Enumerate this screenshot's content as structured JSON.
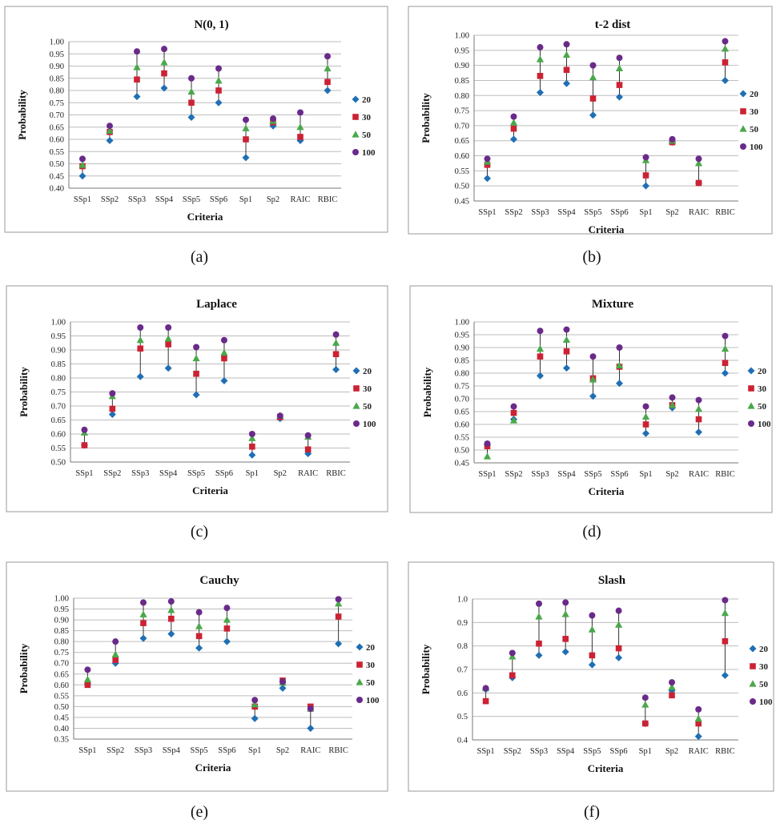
{
  "legend_labels": [
    "20",
    "30",
    "50",
    "100"
  ],
  "series_colors": [
    "#1f6fb5",
    "#cc2233",
    "#4aa84a",
    "#6a2a8a"
  ],
  "panels": [
    {
      "caption": "(a)",
      "title": "N(0, 1)",
      "xlabel": "Criteria",
      "ylabel": "Probability",
      "categories": [
        "SSp1",
        "SSp2",
        "SSp3",
        "SSp4",
        "SSp5",
        "SSp6",
        "Sp1",
        "Sp2",
        "RAIC",
        "RBIC"
      ],
      "yticks": [
        "0.40",
        "0.45",
        "0.50",
        "0.55",
        "0.60",
        "0.65",
        "0.70",
        "0.75",
        "0.80",
        "0.85",
        "0.90",
        "0.95",
        "1.00"
      ],
      "chart_data": {
        "type": "scatter",
        "ylim": [
          0.4,
          1.0
        ],
        "categories": [
          "SSp1",
          "SSp2",
          "SSp3",
          "SSp4",
          "SSp5",
          "SSp6",
          "Sp1",
          "Sp2",
          "RAIC",
          "RBIC"
        ],
        "series": [
          {
            "name": "20",
            "values": [
              0.45,
              0.595,
              0.775,
              0.81,
              0.69,
              0.75,
              0.525,
              0.655,
              0.595,
              0.8
            ]
          },
          {
            "name": "30",
            "values": [
              0.49,
              0.63,
              0.845,
              0.87,
              0.75,
              0.8,
              0.6,
              0.67,
              0.61,
              0.835
            ]
          },
          {
            "name": "50",
            "values": [
              0.495,
              0.635,
              0.895,
              0.915,
              0.795,
              0.84,
              0.645,
              0.675,
              0.65,
              0.89
            ]
          },
          {
            "name": "100",
            "values": [
              0.52,
              0.655,
              0.96,
              0.97,
              0.85,
              0.89,
              0.68,
              0.685,
              0.71,
              0.94
            ]
          }
        ],
        "legend": "right"
      }
    },
    {
      "caption": "(b)",
      "title": "t-2 dist",
      "xlabel": "Criteria",
      "ylabel": "Probability",
      "categories": [
        "SSp1",
        "SSp2",
        "SSp3",
        "SSp4",
        "SSp5",
        "SSp6",
        "Sp1",
        "Sp2",
        "RAIC",
        "RBIC"
      ],
      "yticks": [
        "0.45",
        "0.50",
        "0.55",
        "0.60",
        "0.65",
        "0.70",
        "0.75",
        "0.80",
        "0.85",
        "0.90",
        "0.95",
        "1.00"
      ],
      "chart_data": {
        "type": "scatter",
        "ylim": [
          0.45,
          1.0
        ],
        "categories": [
          "SSp1",
          "SSp2",
          "SSp3",
          "SSp4",
          "SSp5",
          "SSp6",
          "Sp1",
          "Sp2",
          "RAIC",
          "RBIC"
        ],
        "series": [
          {
            "name": "20",
            "values": [
              0.525,
              0.655,
              0.81,
              0.84,
              0.735,
              0.795,
              0.5,
              0.645,
              0.51,
              0.85
            ]
          },
          {
            "name": "30",
            "values": [
              0.57,
              0.69,
              0.865,
              0.885,
              0.79,
              0.835,
              0.535,
              0.645,
              0.51,
              0.91
            ]
          },
          {
            "name": "50",
            "values": [
              0.58,
              0.71,
              0.92,
              0.935,
              0.86,
              0.89,
              0.585,
              0.65,
              0.575,
              0.955
            ]
          },
          {
            "name": "100",
            "values": [
              0.59,
              0.73,
              0.96,
              0.97,
              0.9,
              0.925,
              0.595,
              0.655,
              0.59,
              0.98
            ]
          }
        ],
        "legend": "right"
      }
    },
    {
      "caption": "(c)",
      "title": "Laplace",
      "xlabel": "Criteria",
      "ylabel": "Probability",
      "categories": [
        "SSp1",
        "SSp2",
        "SSp3",
        "SSp4",
        "SSp5",
        "SSp6",
        "Sp1",
        "Sp2",
        "RAIC",
        "RBIC"
      ],
      "yticks": [
        "0.50",
        "0.55",
        "0.60",
        "0.65",
        "0.70",
        "0.75",
        "0.80",
        "0.85",
        "0.90",
        "0.95",
        "1.00"
      ],
      "chart_data": {
        "type": "scatter",
        "ylim": [
          0.5,
          1.0
        ],
        "categories": [
          "SSp1",
          "SSp2",
          "SSp3",
          "SSp4",
          "SSp5",
          "SSp6",
          "Sp1",
          "Sp2",
          "RAIC",
          "RBIC"
        ],
        "series": [
          {
            "name": "20",
            "values": [
              0.56,
              0.67,
              0.805,
              0.835,
              0.74,
              0.79,
              0.525,
              0.655,
              0.53,
              0.83
            ]
          },
          {
            "name": "30",
            "values": [
              0.56,
              0.69,
              0.905,
              0.92,
              0.815,
              0.87,
              0.555,
              0.66,
              0.545,
              0.885
            ]
          },
          {
            "name": "50",
            "values": [
              0.605,
              0.735,
              0.935,
              0.94,
              0.87,
              0.89,
              0.585,
              0.665,
              0.59,
              0.925
            ]
          },
          {
            "name": "100",
            "values": [
              0.615,
              0.745,
              0.98,
              0.98,
              0.91,
              0.935,
              0.6,
              0.665,
              0.595,
              0.955
            ]
          }
        ],
        "legend": "right"
      }
    },
    {
      "caption": "(d)",
      "title": "Mixture",
      "xlabel": "Criteria",
      "ylabel": "Probability",
      "categories": [
        "SSp1",
        "SSp2",
        "SSp3",
        "SSp4",
        "SSp5",
        "SSp6",
        "Sp1",
        "Sp2",
        "RAIC",
        "RBIC"
      ],
      "yticks": [
        "0.45",
        "0.50",
        "0.55",
        "0.60",
        "0.65",
        "0.70",
        "0.75",
        "0.80",
        "0.85",
        "0.90",
        "0.95",
        "1.00"
      ],
      "chart_data": {
        "type": "scatter",
        "ylim": [
          0.45,
          1.0
        ],
        "categories": [
          "SSp1",
          "SSp2",
          "SSp3",
          "SSp4",
          "SSp5",
          "SSp6",
          "Sp1",
          "Sp2",
          "RAIC",
          "RBIC"
        ],
        "series": [
          {
            "name": "20",
            "values": [
              0.52,
              0.62,
              0.79,
              0.82,
              0.71,
              0.76,
              0.565,
              0.665,
              0.57,
              0.8
            ]
          },
          {
            "name": "30",
            "values": [
              0.515,
              0.645,
              0.865,
              0.885,
              0.78,
              0.825,
              0.6,
              0.675,
              0.62,
              0.84
            ]
          },
          {
            "name": "50",
            "values": [
              0.475,
              0.615,
              0.895,
              0.93,
              0.775,
              0.83,
              0.63,
              0.675,
              0.66,
              0.895
            ]
          },
          {
            "name": "100",
            "values": [
              0.525,
              0.67,
              0.965,
              0.97,
              0.865,
              0.9,
              0.67,
              0.705,
              0.695,
              0.945
            ]
          }
        ],
        "legend": "right"
      }
    },
    {
      "caption": "(e)",
      "title": "Cauchy",
      "xlabel": "Criteria",
      "ylabel": "Probability",
      "categories": [
        "SSp1",
        "SSp2",
        "SSp3",
        "SSp4",
        "SSp5",
        "SSp6",
        "Sp1",
        "Sp2",
        "RAIC",
        "RBIC"
      ],
      "yticks": [
        "0.35",
        "0.40",
        "0.45",
        "0.50",
        "0.55",
        "0.60",
        "0.65",
        "0.70",
        "0.75",
        "0.80",
        "0.85",
        "0.90",
        "0.95",
        "1.00"
      ],
      "chart_data": {
        "type": "scatter",
        "ylim": [
          0.35,
          1.0
        ],
        "categories": [
          "SSp1",
          "SSp2",
          "SSp3",
          "SSp4",
          "SSp5",
          "SSp6",
          "Sp1",
          "Sp2",
          "RAIC",
          "RBIC"
        ],
        "series": [
          {
            "name": "20",
            "values": [
              0.605,
              0.7,
              0.815,
              0.835,
              0.77,
              0.8,
              0.445,
              0.585,
              0.4,
              0.79
            ]
          },
          {
            "name": "30",
            "values": [
              0.6,
              0.715,
              0.885,
              0.905,
              0.825,
              0.86,
              0.5,
              0.62,
              0.5,
              0.915
            ]
          },
          {
            "name": "50",
            "values": [
              0.625,
              0.74,
              0.925,
              0.945,
              0.87,
              0.9,
              0.51,
              0.61,
              0.49,
              0.975
            ]
          },
          {
            "name": "100",
            "values": [
              0.67,
              0.8,
              0.98,
              0.985,
              0.935,
              0.955,
              0.53,
              0.615,
              0.49,
              0.995
            ]
          }
        ],
        "legend": "right"
      }
    },
    {
      "caption": "(f)",
      "title": "Slash",
      "xlabel": "Criteria",
      "ylabel": "Probability",
      "categories": [
        "SSp1",
        "SSp2",
        "SSp3",
        "SSp4",
        "SSp5",
        "SSp6",
        "Sp1",
        "Sp2",
        "RAIC",
        "RBIC"
      ],
      "yticks": [
        "0.4",
        "0.5",
        "0.6",
        "0.7",
        "0.8",
        "0.9",
        "1.0"
      ],
      "chart_data": {
        "type": "scatter",
        "ylim": [
          0.4,
          1.0
        ],
        "categories": [
          "SSp1",
          "SSp2",
          "SSp3",
          "SSp4",
          "SSp5",
          "SSp6",
          "Sp1",
          "Sp2",
          "RAIC",
          "RBIC"
        ],
        "series": [
          {
            "name": "20",
            "values": [
              0.615,
              0.665,
              0.76,
              0.775,
              0.72,
              0.75,
              0.47,
              0.61,
              0.415,
              0.675
            ]
          },
          {
            "name": "30",
            "values": [
              0.565,
              0.675,
              0.81,
              0.83,
              0.76,
              0.79,
              0.47,
              0.59,
              0.47,
              0.82
            ]
          },
          {
            "name": "50",
            "values": [
              0.62,
              0.755,
              0.925,
              0.935,
              0.87,
              0.89,
              0.55,
              0.625,
              0.49,
              0.94
            ]
          },
          {
            "name": "100",
            "values": [
              0.62,
              0.77,
              0.98,
              0.985,
              0.93,
              0.95,
              0.58,
              0.645,
              0.53,
              0.995
            ]
          }
        ],
        "legend": "right"
      }
    }
  ]
}
